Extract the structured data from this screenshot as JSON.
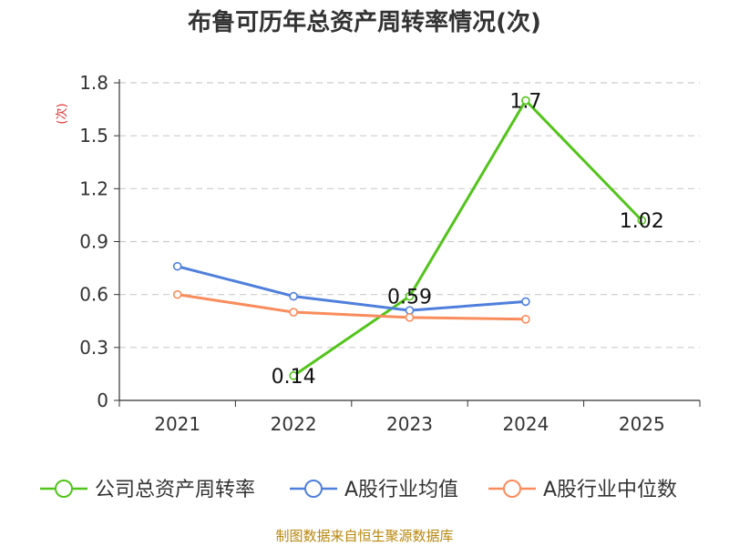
{
  "chart_data": {
    "type": "line",
    "title": "布鲁可历年总资产周转率情况(次)",
    "ylabel": "(次)",
    "xlabel": "",
    "categories": [
      "2021",
      "2022",
      "2023",
      "2024",
      "2025"
    ],
    "ylim": [
      0,
      1.8
    ],
    "yticks": [
      "0",
      "0.3",
      "0.6",
      "0.9",
      "1.2",
      "1.5",
      "1.8"
    ],
    "grid": true,
    "legend_position": "bottom",
    "series": [
      {
        "name": "公司总资产周转率",
        "color": "#52c41a",
        "values": [
          null,
          0.14,
          0.59,
          1.7,
          1.02
        ],
        "labels": [
          "",
          "0.14",
          "0.59",
          "1.7",
          "1.02"
        ]
      },
      {
        "name": "A股行业均值",
        "color": "#4f7fdc",
        "values": [
          0.76,
          0.59,
          0.51,
          0.56,
          null
        ]
      },
      {
        "name": "A股行业中位数",
        "color": "#f98c5c",
        "values": [
          0.6,
          0.5,
          0.47,
          0.46,
          null
        ]
      }
    ]
  },
  "footer": {
    "source": "制图数据来自恒生聚源数据库"
  }
}
